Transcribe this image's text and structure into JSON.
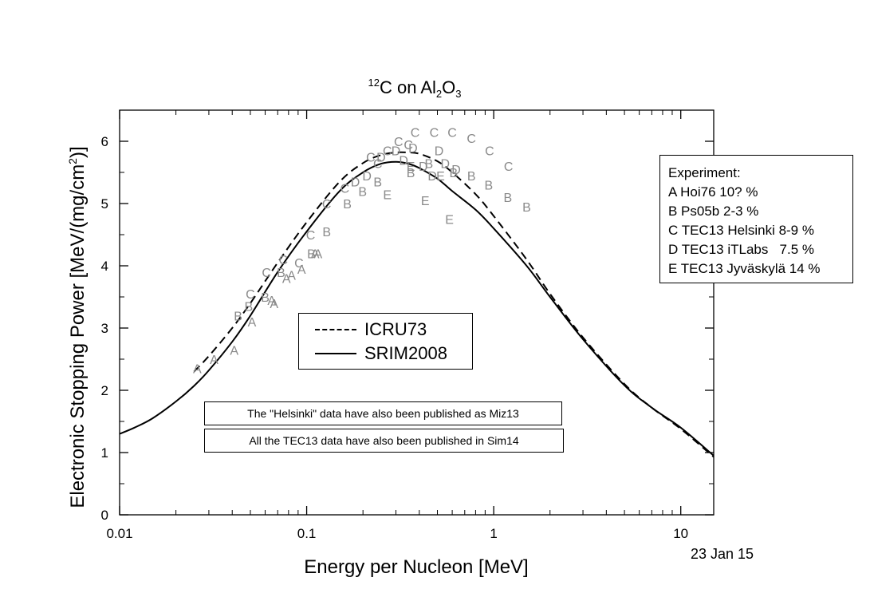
{
  "chart_data": {
    "type": "line",
    "title": {
      "base": "C on Al",
      "isotope": "12",
      "sub1": "2",
      "mid": "O",
      "sub2": "3"
    },
    "xlabel": "Energy per Nucleon [MeV]",
    "ylabel": "Electronic Stopping Power [MeV/(mg/cm2)]",
    "xscale": "log",
    "xlim": [
      0.01,
      15
    ],
    "ylim": [
      0,
      6.5
    ],
    "xticks": [
      "0.01",
      "0.1",
      "1",
      "10"
    ],
    "yticks": [
      "0",
      "1",
      "2",
      "3",
      "4",
      "5",
      "6"
    ],
    "series": [
      {
        "name": "ICRU73",
        "style": "dashed",
        "color": "#000000",
        "x": [
          0.025,
          0.03,
          0.04,
          0.05,
          0.07,
          0.1,
          0.15,
          0.2,
          0.25,
          0.3,
          0.35,
          0.4,
          0.5,
          0.6,
          0.8,
          1.0,
          1.5,
          2.0,
          3.0,
          5.0,
          7.0,
          10.0,
          15.0
        ],
        "y": [
          2.3,
          2.55,
          3.0,
          3.4,
          4.05,
          4.7,
          5.35,
          5.65,
          5.78,
          5.82,
          5.82,
          5.8,
          5.68,
          5.5,
          5.15,
          4.8,
          4.1,
          3.55,
          2.85,
          2.1,
          1.72,
          1.38,
          0.93
        ]
      },
      {
        "name": "SRIM2008",
        "style": "solid",
        "color": "#000000",
        "x": [
          0.01,
          0.012,
          0.015,
          0.02,
          0.025,
          0.03,
          0.04,
          0.05,
          0.07,
          0.1,
          0.15,
          0.2,
          0.25,
          0.3,
          0.35,
          0.4,
          0.5,
          0.6,
          0.8,
          1.0,
          1.5,
          2.0,
          3.0,
          5.0,
          7.0,
          10.0,
          15.0
        ],
        "y": [
          1.3,
          1.4,
          1.55,
          1.82,
          2.07,
          2.32,
          2.78,
          3.2,
          3.9,
          4.55,
          5.2,
          5.5,
          5.64,
          5.67,
          5.64,
          5.57,
          5.4,
          5.2,
          4.9,
          4.6,
          4.0,
          3.5,
          2.82,
          2.08,
          1.72,
          1.4,
          0.95
        ]
      }
    ],
    "points": [
      {
        "label": "A",
        "x": 0.026,
        "y": 2.35
      },
      {
        "label": "A",
        "x": 0.032,
        "y": 2.5
      },
      {
        "label": "A",
        "x": 0.041,
        "y": 2.65
      },
      {
        "label": "A",
        "x": 0.051,
        "y": 3.1
      },
      {
        "label": "A",
        "x": 0.065,
        "y": 3.45
      },
      {
        "label": "A",
        "x": 0.067,
        "y": 3.4
      },
      {
        "label": "A",
        "x": 0.078,
        "y": 3.8
      },
      {
        "label": "A",
        "x": 0.083,
        "y": 3.85
      },
      {
        "label": "A",
        "x": 0.094,
        "y": 3.95
      },
      {
        "label": "A",
        "x": 0.111,
        "y": 4.2
      },
      {
        "label": "A",
        "x": 0.115,
        "y": 4.2
      },
      {
        "label": "B",
        "x": 0.043,
        "y": 3.2
      },
      {
        "label": "B",
        "x": 0.049,
        "y": 3.35
      },
      {
        "label": "B",
        "x": 0.06,
        "y": 3.5
      },
      {
        "label": "B",
        "x": 0.073,
        "y": 3.9
      },
      {
        "label": "B",
        "x": 0.106,
        "y": 4.2
      },
      {
        "label": "B",
        "x": 0.128,
        "y": 4.55
      },
      {
        "label": "B",
        "x": 0.165,
        "y": 5.0
      },
      {
        "label": "B",
        "x": 0.199,
        "y": 5.2
      },
      {
        "label": "B",
        "x": 0.24,
        "y": 5.35
      },
      {
        "label": "B",
        "x": 0.36,
        "y": 5.5
      },
      {
        "label": "B",
        "x": 0.45,
        "y": 5.65
      },
      {
        "label": "B",
        "x": 0.61,
        "y": 5.5
      },
      {
        "label": "B",
        "x": 0.76,
        "y": 5.45
      },
      {
        "label": "B",
        "x": 0.94,
        "y": 5.3
      },
      {
        "label": "B",
        "x": 1.19,
        "y": 5.1
      },
      {
        "label": "B",
        "x": 1.5,
        "y": 4.95
      },
      {
        "label": "C",
        "x": 0.05,
        "y": 3.55
      },
      {
        "label": "C",
        "x": 0.061,
        "y": 3.9
      },
      {
        "label": "C",
        "x": 0.075,
        "y": 4.1
      },
      {
        "label": "C",
        "x": 0.091,
        "y": 4.05
      },
      {
        "label": "C",
        "x": 0.105,
        "y": 4.5
      },
      {
        "label": "C",
        "x": 0.128,
        "y": 5.0
      },
      {
        "label": "C",
        "x": 0.16,
        "y": 5.25
      },
      {
        "label": "C",
        "x": 0.22,
        "y": 5.75
      },
      {
        "label": "C",
        "x": 0.24,
        "y": 5.65
      },
      {
        "label": "C",
        "x": 0.27,
        "y": 5.85
      },
      {
        "label": "C",
        "x": 0.31,
        "y": 6.0
      },
      {
        "label": "C",
        "x": 0.35,
        "y": 5.95
      },
      {
        "label": "C",
        "x": 0.38,
        "y": 6.15
      },
      {
        "label": "C",
        "x": 0.48,
        "y": 6.15
      },
      {
        "label": "C",
        "x": 0.6,
        "y": 6.15
      },
      {
        "label": "C",
        "x": 0.76,
        "y": 6.05
      },
      {
        "label": "C",
        "x": 0.95,
        "y": 5.85
      },
      {
        "label": "C",
        "x": 1.2,
        "y": 5.6
      },
      {
        "label": "D",
        "x": 0.182,
        "y": 5.35
      },
      {
        "label": "D",
        "x": 0.21,
        "y": 5.45
      },
      {
        "label": "D",
        "x": 0.25,
        "y": 5.75
      },
      {
        "label": "D",
        "x": 0.3,
        "y": 5.85
      },
      {
        "label": "D",
        "x": 0.33,
        "y": 5.7
      },
      {
        "label": "D",
        "x": 0.37,
        "y": 5.9
      },
      {
        "label": "D",
        "x": 0.42,
        "y": 5.6
      },
      {
        "label": "D",
        "x": 0.47,
        "y": 5.45
      },
      {
        "label": "D",
        "x": 0.51,
        "y": 5.85
      },
      {
        "label": "D",
        "x": 0.55,
        "y": 5.65
      },
      {
        "label": "D",
        "x": 0.63,
        "y": 5.55
      },
      {
        "label": "E",
        "x": 0.27,
        "y": 5.15
      },
      {
        "label": "E",
        "x": 0.36,
        "y": 5.6
      },
      {
        "label": "E",
        "x": 0.43,
        "y": 5.05
      },
      {
        "label": "E",
        "x": 0.52,
        "y": 5.45
      },
      {
        "label": "E",
        "x": 0.58,
        "y": 4.75
      }
    ]
  },
  "legend_experiment": {
    "items": [
      "Experiment:",
      "A Hoi76 10? %",
      "B Ps05b 2-3 %",
      "C TEC13 Helsinki 8-9 %",
      "D TEC13 iTLabs   7.5 %",
      "E TEC13 Jyväskylä 14 %"
    ]
  },
  "legend_lines": {
    "icru": "ICRU73",
    "srim": "SRIM2008"
  },
  "notes": {
    "helsinki": "The \"Helsinki\" data have also been published as Miz13",
    "tec13": "All the TEC13 data have also been published in Sim14"
  },
  "date": "23 Jan 15"
}
